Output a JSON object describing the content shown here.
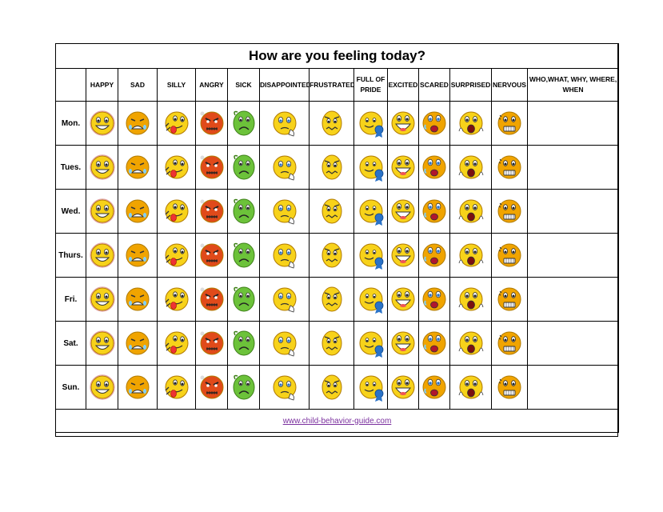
{
  "title": "How are you feeling today?",
  "headers": [
    "HAPPY",
    "SAD",
    "SILLY",
    "ANGRY",
    "SICK",
    "DISAPPOINTED",
    "FRUSTRATED",
    "FULL OF PRIDE",
    "EXCITED",
    "SCARED",
    "SURPRISED",
    "NERVOUS",
    "WHO,WHAT, WHY, WHERE, WHEN"
  ],
  "days": [
    "Mon.",
    "Tues.",
    "Wed.",
    "Thurs.",
    "Fri.",
    "Sat.",
    "Sun."
  ],
  "face_icons": [
    "happy-face-icon",
    "sad-crying-face-icon",
    "silly-tongue-face-icon",
    "angry-face-icon",
    "sick-face-icon",
    "disappointed-face-icon",
    "frustrated-face-icon",
    "proud-ribbon-face-icon",
    "excited-face-icon",
    "scared-face-icon",
    "surprised-face-icon",
    "nervous-face-icon"
  ],
  "footer": {
    "link_text": "www.child-behavior-guide.com"
  },
  "colors": {
    "face_yellow": "#f7d21a",
    "face_orange": "#f0a400",
    "angry_red": "#e04a1a",
    "sick_green": "#6cc23a",
    "link_purple": "#7a2f9e",
    "ribbon_blue": "#2a73c8"
  }
}
